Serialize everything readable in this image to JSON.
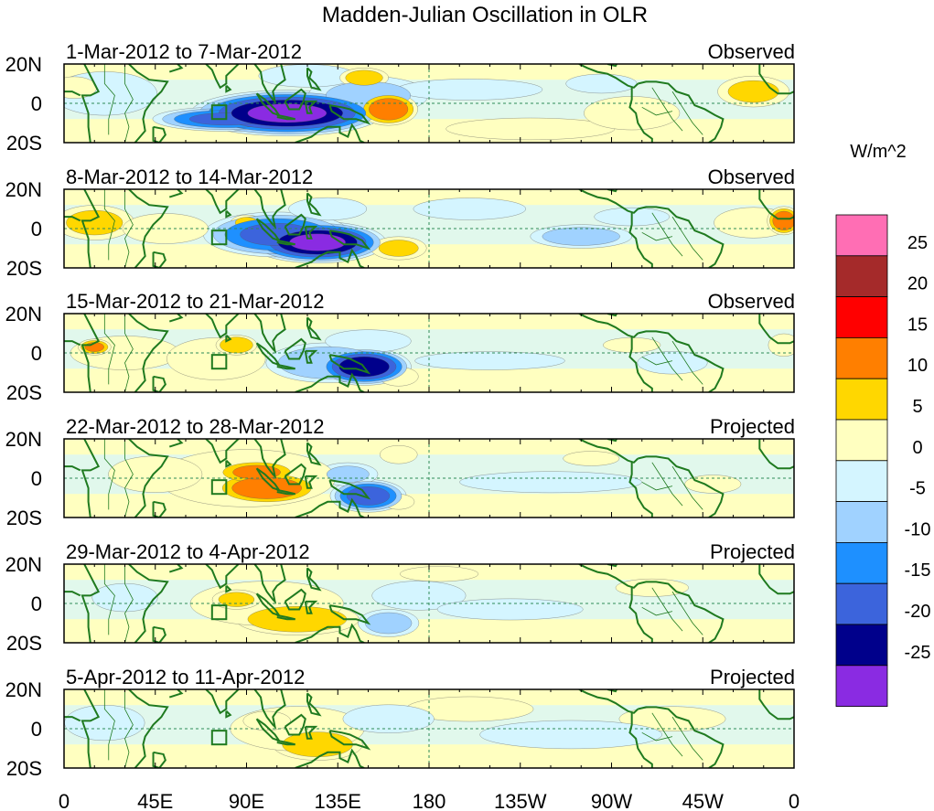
{
  "chart_data": {
    "type": "heatmap",
    "title": "Madden-Julian Oscillation in OLR",
    "units_label": "W/m^2",
    "x_ticks": [
      "0",
      "45E",
      "90E",
      "135E",
      "180",
      "135W",
      "90W",
      "45W",
      "0"
    ],
    "x_range_deg": [
      0,
      360
    ],
    "y_ticks": [
      "20N",
      "0",
      "20S"
    ],
    "y_range_deg": [
      -20,
      20
    ],
    "colorbar": {
      "labels": [
        "25",
        "20",
        "15",
        "10",
        "5",
        "0",
        "-5",
        "-10",
        "-15",
        "-20",
        "-25"
      ],
      "levels": [
        25,
        20,
        15,
        10,
        5,
        0,
        -5,
        -10,
        -15,
        -20,
        -25
      ],
      "colors": [
        "#ff6eb4",
        "#a52a2a",
        "#ff0000",
        "#ff7f00",
        "#ffd700",
        "#ffffc0",
        "#d4f5ff",
        "#a0d2ff",
        "#1e90ff",
        "#3c64dc",
        "#00008b",
        "#8a2be2"
      ]
    },
    "panels": [
      {
        "period": "1-Mar-2012 to 7-Mar-2012",
        "status": "Observed",
        "blobs": [
          {
            "lon": 110,
            "lat": -5,
            "rx": 45,
            "ry": 11,
            "v": -30
          },
          {
            "lon": 80,
            "lat": -8,
            "rx": 35,
            "ry": 6,
            "v": -20
          },
          {
            "lon": 150,
            "lat": 4,
            "rx": 30,
            "ry": 10,
            "v": -10
          },
          {
            "lon": 120,
            "lat": 14,
            "rx": 25,
            "ry": 6,
            "v": -8
          },
          {
            "lon": 20,
            "lat": 5,
            "rx": 28,
            "ry": 12,
            "v": -6
          },
          {
            "lon": 160,
            "lat": -3,
            "rx": 14,
            "ry": 8,
            "v": 18
          },
          {
            "lon": 148,
            "lat": 13,
            "rx": 12,
            "ry": 5,
            "v": 12
          },
          {
            "lon": 230,
            "lat": -13,
            "rx": 45,
            "ry": 6,
            "v": 6
          },
          {
            "lon": 280,
            "lat": -5,
            "rx": 25,
            "ry": 9,
            "v": 7
          },
          {
            "lon": 340,
            "lat": 6,
            "rx": 18,
            "ry": 8,
            "v": 10
          },
          {
            "lon": 200,
            "lat": 7,
            "rx": 40,
            "ry": 6,
            "v": -5
          },
          {
            "lon": 265,
            "lat": 10,
            "rx": 18,
            "ry": 5,
            "v": -9
          },
          {
            "lon": 5,
            "lat": 8,
            "rx": 12,
            "ry": 6,
            "v": 6
          }
        ]
      },
      {
        "period": "8-Mar-2012 to 14-Mar-2012",
        "status": "Observed",
        "blobs": [
          {
            "lon": 125,
            "lat": -7,
            "rx": 32,
            "ry": 10,
            "v": -30
          },
          {
            "lon": 105,
            "lat": -3,
            "rx": 35,
            "ry": 11,
            "v": -20
          },
          {
            "lon": 130,
            "lat": 10,
            "rx": 20,
            "ry": 6,
            "v": -8
          },
          {
            "lon": 15,
            "lat": 3,
            "rx": 20,
            "ry": 9,
            "v": 10
          },
          {
            "lon": 50,
            "lat": 0,
            "rx": 22,
            "ry": 8,
            "v": 8
          },
          {
            "lon": 90,
            "lat": 3,
            "rx": 8,
            "ry": 4,
            "v": 10
          },
          {
            "lon": 165,
            "lat": -10,
            "rx": 14,
            "ry": 6,
            "v": 10
          },
          {
            "lon": 255,
            "lat": -4,
            "rx": 25,
            "ry": 6,
            "v": -12
          },
          {
            "lon": 340,
            "lat": 3,
            "rx": 20,
            "ry": 8,
            "v": 9
          },
          {
            "lon": 355,
            "lat": 4,
            "rx": 8,
            "ry": 7,
            "v": 18
          },
          {
            "lon": 200,
            "lat": 10,
            "rx": 30,
            "ry": 6,
            "v": -6
          },
          {
            "lon": 280,
            "lat": 6,
            "rx": 20,
            "ry": 5,
            "v": -6
          }
        ]
      },
      {
        "period": "15-Mar-2012 to 21-Mar-2012",
        "status": "Observed",
        "blobs": [
          {
            "lon": 148,
            "lat": -7,
            "rx": 22,
            "ry": 9,
            "v": -28
          },
          {
            "lon": 130,
            "lat": -5,
            "rx": 30,
            "ry": 10,
            "v": -14
          },
          {
            "lon": 150,
            "lat": 6,
            "rx": 22,
            "ry": 6,
            "v": -8
          },
          {
            "lon": 30,
            "lat": 0,
            "rx": 28,
            "ry": 9,
            "v": 8
          },
          {
            "lon": 15,
            "lat": 3,
            "rx": 8,
            "ry": 4,
            "v": 15
          },
          {
            "lon": 75,
            "lat": -3,
            "rx": 25,
            "ry": 11,
            "v": 9
          },
          {
            "lon": 85,
            "lat": 4,
            "rx": 10,
            "ry": 5,
            "v": 14
          },
          {
            "lon": 165,
            "lat": -12,
            "rx": 10,
            "ry": 5,
            "v": 9
          },
          {
            "lon": 210,
            "lat": -4,
            "rx": 40,
            "ry": 5,
            "v": -6
          },
          {
            "lon": 280,
            "lat": 4,
            "rx": 15,
            "ry": 4,
            "v": 7
          },
          {
            "lon": 300,
            "lat": -5,
            "rx": 18,
            "ry": 6,
            "v": -8
          },
          {
            "lon": 355,
            "lat": 4,
            "rx": 8,
            "ry": 6,
            "v": 8
          }
        ]
      },
      {
        "period": "22-Mar-2012 to 28-Mar-2012",
        "status": "Projected",
        "blobs": [
          {
            "lon": 150,
            "lat": -9,
            "rx": 18,
            "ry": 8,
            "v": -22
          },
          {
            "lon": 140,
            "lat": 2,
            "rx": 15,
            "ry": 6,
            "v": -10
          },
          {
            "lon": 100,
            "lat": -5,
            "rx": 25,
            "ry": 8,
            "v": 18
          },
          {
            "lon": 95,
            "lat": 3,
            "rx": 20,
            "ry": 6,
            "v": 15
          },
          {
            "lon": 90,
            "lat": 0,
            "rx": 45,
            "ry": 15,
            "v": 9
          },
          {
            "lon": 45,
            "lat": 2,
            "rx": 25,
            "ry": 10,
            "v": 6
          },
          {
            "lon": 165,
            "lat": -12,
            "rx": 8,
            "ry": 4,
            "v": 9
          },
          {
            "lon": 240,
            "lat": -2,
            "rx": 50,
            "ry": 6,
            "v": -5
          },
          {
            "lon": 260,
            "lat": 10,
            "rx": 15,
            "ry": 4,
            "v": 6
          },
          {
            "lon": 165,
            "lat": 12,
            "rx": 10,
            "ry": 5,
            "v": 6
          },
          {
            "lon": 320,
            "lat": -3,
            "rx": 15,
            "ry": 5,
            "v": 6
          }
        ]
      },
      {
        "period": "29-Mar-2012 to 4-Apr-2012",
        "status": "Projected",
        "blobs": [
          {
            "lon": 115,
            "lat": -8,
            "rx": 30,
            "ry": 8,
            "v": 14
          },
          {
            "lon": 100,
            "lat": 0,
            "rx": 40,
            "ry": 12,
            "v": 7
          },
          {
            "lon": 85,
            "lat": 2,
            "rx": 12,
            "ry": 5,
            "v": 11
          },
          {
            "lon": 160,
            "lat": -10,
            "rx": 15,
            "ry": 7,
            "v": -12
          },
          {
            "lon": 175,
            "lat": 4,
            "rx": 25,
            "ry": 8,
            "v": -6
          },
          {
            "lon": 220,
            "lat": -3,
            "rx": 40,
            "ry": 6,
            "v": -5
          },
          {
            "lon": 290,
            "lat": 8,
            "rx": 20,
            "ry": 5,
            "v": 5
          },
          {
            "lon": 30,
            "lat": 3,
            "rx": 18,
            "ry": 8,
            "v": -5
          },
          {
            "lon": 185,
            "lat": 15,
            "rx": 20,
            "ry": 4,
            "v": 4
          }
        ]
      },
      {
        "period": "5-Apr-2012 to 11-Apr-2012",
        "status": "Projected",
        "blobs": [
          {
            "lon": 125,
            "lat": -8,
            "rx": 22,
            "ry": 8,
            "v": 13
          },
          {
            "lon": 115,
            "lat": 0,
            "rx": 35,
            "ry": 12,
            "v": 7
          },
          {
            "lon": 100,
            "lat": 4,
            "rx": 12,
            "ry": 5,
            "v": 9
          },
          {
            "lon": 20,
            "lat": 3,
            "rx": 22,
            "ry": 10,
            "v": -5
          },
          {
            "lon": 160,
            "lat": 5,
            "rx": 25,
            "ry": 8,
            "v": -5
          },
          {
            "lon": 250,
            "lat": -3,
            "rx": 50,
            "ry": 8,
            "v": -5
          },
          {
            "lon": 200,
            "lat": 10,
            "rx": 30,
            "ry": 6,
            "v": 3
          },
          {
            "lon": 300,
            "lat": 5,
            "rx": 25,
            "ry": 6,
            "v": 3
          }
        ]
      }
    ]
  }
}
